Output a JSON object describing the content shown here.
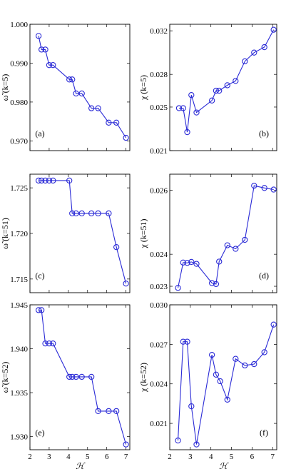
{
  "chart_data": [
    {
      "id": "a",
      "type": "line",
      "panel_label": "(a)",
      "ylabel": "ω̃ (k=5)",
      "xlabel": "",
      "xlim": [
        2,
        7.2
      ],
      "ylim": [
        0.9675,
        1.0
      ],
      "xticks": [
        2,
        3,
        4,
        5,
        6,
        7
      ],
      "xticklabels": [],
      "yticks": [
        0.97,
        0.98,
        0.99,
        1.0
      ],
      "yticklabels": [
        "0.970",
        "0.980",
        "0.990",
        "1.000"
      ],
      "x": [
        2.45,
        2.6,
        2.8,
        3.0,
        3.2,
        4.05,
        4.2,
        4.4,
        4.7,
        5.2,
        5.55,
        6.1,
        6.5,
        7.0
      ],
      "y": [
        0.997,
        0.9935,
        0.9935,
        0.9895,
        0.9895,
        0.9858,
        0.9858,
        0.9822,
        0.9822,
        0.9784,
        0.9784,
        0.9747,
        0.9747,
        0.9708
      ]
    },
    {
      "id": "b",
      "type": "line",
      "panel_label": "(b)",
      "ylabel": "χ (k=5)",
      "xlabel": "",
      "xlim": [
        2,
        7.2
      ],
      "ylim": [
        0.021,
        0.0326
      ],
      "xticks": [
        2,
        3,
        4,
        5,
        6,
        7
      ],
      "xticklabels": [],
      "yticks": [
        0.021,
        0.025,
        0.028,
        0.032
      ],
      "yticklabels": [
        "0.021",
        "0.025",
        "0.028",
        "0.032"
      ],
      "x": [
        2.45,
        2.65,
        2.85,
        3.05,
        3.3,
        4.05,
        4.25,
        4.4,
        4.8,
        5.2,
        5.65,
        6.1,
        6.6,
        7.05
      ],
      "y": [
        0.0249,
        0.0249,
        0.0227,
        0.0261,
        0.0245,
        0.0256,
        0.0265,
        0.0265,
        0.027,
        0.0274,
        0.0292,
        0.03,
        0.0305,
        0.0321
      ]
    },
    {
      "id": "c",
      "type": "line",
      "panel_label": "(c)",
      "ylabel": "ω̃ (k=51)",
      "xlabel": "",
      "xlim": [
        2,
        7.2
      ],
      "ylim": [
        1.7135,
        1.7265
      ],
      "xticks": [
        2,
        3,
        4,
        5,
        6,
        7
      ],
      "xticklabels": [],
      "yticks": [
        1.715,
        1.72,
        1.725
      ],
      "yticklabels": [
        "1.715",
        "1.720",
        "1.725"
      ],
      "x": [
        2.45,
        2.6,
        2.8,
        3.0,
        3.2,
        4.05,
        4.2,
        4.4,
        4.7,
        5.2,
        5.55,
        6.1,
        6.5,
        7.0
      ],
      "y": [
        1.7258,
        1.7258,
        1.7258,
        1.7258,
        1.7258,
        1.7258,
        1.7222,
        1.7222,
        1.7222,
        1.7222,
        1.7222,
        1.7222,
        1.7185,
        1.7145
      ]
    },
    {
      "id": "d",
      "type": "line",
      "panel_label": "(d)",
      "ylabel": "χ (k=51)",
      "xlabel": "",
      "xlim": [
        2,
        7.2
      ],
      "ylim": [
        0.0228,
        0.0265
      ],
      "xticks": [
        2,
        3,
        4,
        5,
        6,
        7
      ],
      "xticklabels": [],
      "yticks": [
        0.023,
        0.024,
        0.026
      ],
      "yticklabels": [
        "0.023",
        "0.024",
        "0.026"
      ],
      "x": [
        2.4,
        2.65,
        2.85,
        3.05,
        3.3,
        4.05,
        4.25,
        4.4,
        4.8,
        5.2,
        5.65,
        6.1,
        6.6,
        7.05
      ],
      "y": [
        0.02295,
        0.02374,
        0.02373,
        0.02376,
        0.0237,
        0.0231,
        0.02307,
        0.02377,
        0.02428,
        0.02417,
        0.02445,
        0.02614,
        0.02607,
        0.02602
      ]
    },
    {
      "id": "e",
      "type": "line",
      "panel_label": "(e)",
      "ylabel": "ω̃ (k=52)",
      "xlabel": "ℋ",
      "xlim": [
        2,
        7.2
      ],
      "ylim": [
        1.9285,
        1.945
      ],
      "xticks": [
        2,
        3,
        4,
        5,
        6,
        7
      ],
      "xticklabels": [
        "2",
        "3",
        "4",
        "5",
        "6",
        "7"
      ],
      "yticks": [
        1.93,
        1.935,
        1.94,
        1.945
      ],
      "yticklabels": [
        "1.930",
        "1.935",
        "1.940",
        "1.945"
      ],
      "x": [
        2.45,
        2.6,
        2.8,
        3.0,
        3.2,
        4.05,
        4.2,
        4.4,
        4.7,
        5.2,
        5.55,
        6.1,
        6.5,
        7.0
      ],
      "y": [
        1.9444,
        1.9444,
        1.9406,
        1.9406,
        1.9406,
        1.9368,
        1.9368,
        1.9368,
        1.9368,
        1.9368,
        1.9329,
        1.9329,
        1.9329,
        1.9291
      ]
    },
    {
      "id": "f",
      "type": "line",
      "panel_label": "(f)",
      "ylabel": "χ (k=52)",
      "xlabel": "ℋ",
      "xlim": [
        2,
        7.2
      ],
      "ylim": [
        0.019,
        0.03
      ],
      "xticks": [
        2,
        3,
        4,
        5,
        6,
        7
      ],
      "xticklabels": [
        "2",
        "3",
        "4",
        "5",
        "6",
        "7"
      ],
      "yticks": [
        0.021,
        0.024,
        0.027,
        0.03
      ],
      "yticklabels": [
        "0.021",
        "0.024",
        "0.027",
        "0.030"
      ],
      "x": [
        2.4,
        2.65,
        2.85,
        3.05,
        3.3,
        4.05,
        4.25,
        4.45,
        4.8,
        5.2,
        5.65,
        6.1,
        6.6,
        7.05
      ],
      "y": [
        0.0197,
        0.0272,
        0.0272,
        0.0223,
        0.0194,
        0.0262,
        0.0247,
        0.0242,
        0.0228,
        0.0259,
        0.0254,
        0.0255,
        0.0264,
        0.0285
      ]
    }
  ]
}
